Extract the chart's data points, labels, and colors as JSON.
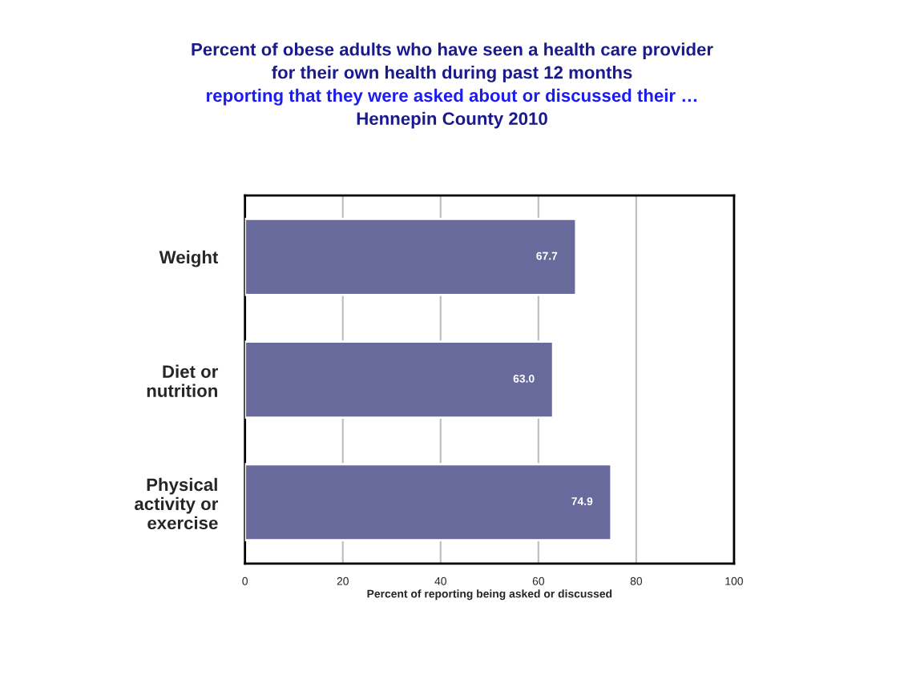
{
  "chart_data": {
    "type": "bar",
    "orientation": "horizontal",
    "title": "Percent of obese adults who have seen a health care provider\nfor their own health during past 12 months\nreporting that they were asked about or discussed their …\nHennepin County 2010",
    "xlabel": "Percent of reporting being asked or discussed",
    "categories": [
      "Weight",
      "Diet or\nnutrition",
      "Physical\nactivity or\nexercise"
    ],
    "values": [
      67.7,
      63.0,
      74.9
    ],
    "value_labels": [
      "67.7",
      "63.0",
      "74.9"
    ],
    "color": "#696a9c",
    "xlim": [
      0,
      100
    ],
    "xticks": [
      0,
      20,
      40,
      60,
      80,
      100
    ],
    "grid": "x",
    "legend": false
  }
}
